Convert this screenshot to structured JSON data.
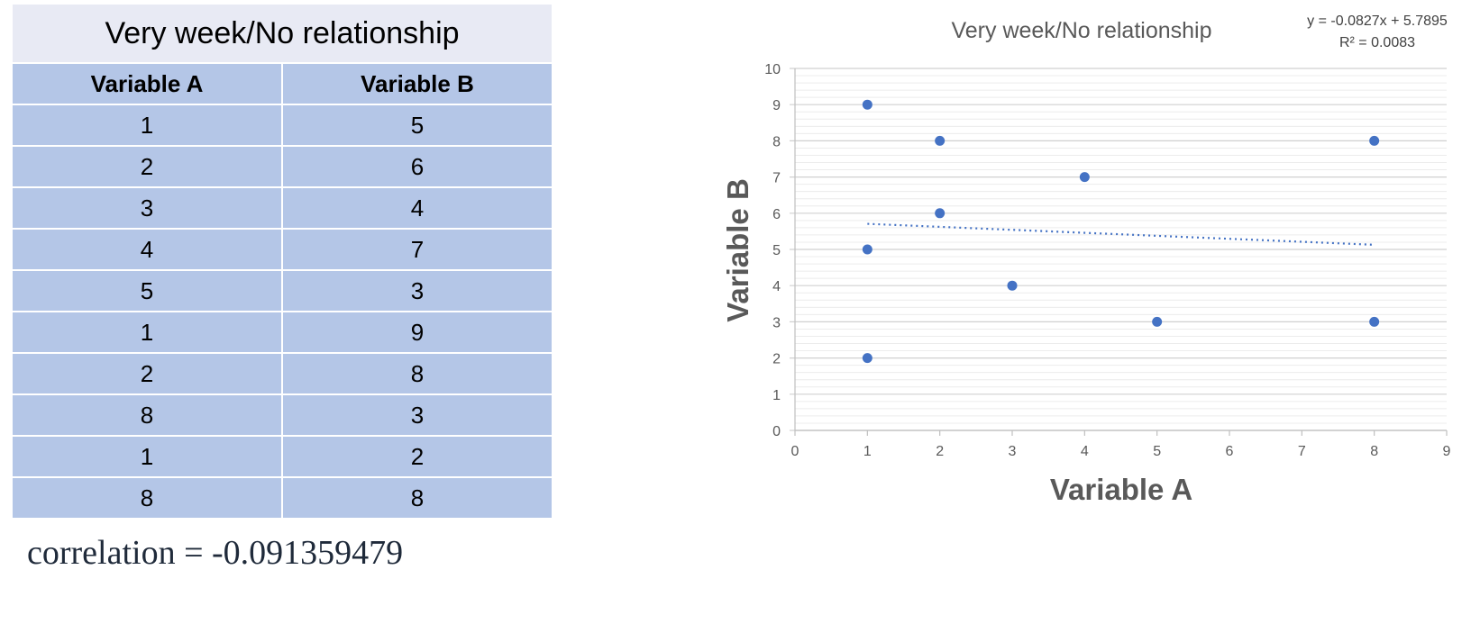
{
  "table": {
    "title": "Very week/No relationship",
    "headers": [
      "Variable A",
      "Variable B"
    ],
    "rows": [
      [
        "1",
        "5"
      ],
      [
        "2",
        "6"
      ],
      [
        "3",
        "4"
      ],
      [
        "4",
        "7"
      ],
      [
        "5",
        "3"
      ],
      [
        "1",
        "9"
      ],
      [
        "2",
        "8"
      ],
      [
        "8",
        "3"
      ],
      [
        "1",
        "2"
      ],
      [
        "8",
        "8"
      ]
    ]
  },
  "correlation_label": "correlation = -0.091359479",
  "chart_data": {
    "type": "scatter",
    "title": "Very week/No relationship",
    "xlabel": "Variable A",
    "ylabel": "Variable B",
    "xlim": [
      0,
      9
    ],
    "ylim": [
      0,
      10
    ],
    "xticks": [
      0,
      1,
      2,
      3,
      4,
      5,
      6,
      7,
      8,
      9
    ],
    "yticks": [
      0,
      1,
      2,
      3,
      4,
      5,
      6,
      7,
      8,
      9,
      10
    ],
    "points": [
      {
        "x": 1,
        "y": 5
      },
      {
        "x": 2,
        "y": 6
      },
      {
        "x": 3,
        "y": 4
      },
      {
        "x": 4,
        "y": 7
      },
      {
        "x": 5,
        "y": 3
      },
      {
        "x": 1,
        "y": 9
      },
      {
        "x": 2,
        "y": 8
      },
      {
        "x": 8,
        "y": 3
      },
      {
        "x": 1,
        "y": 2
      },
      {
        "x": 8,
        "y": 8
      }
    ],
    "trendline": {
      "type": "linear",
      "slope": -0.0827,
      "intercept": 5.7895,
      "x_range": [
        1,
        8
      ]
    },
    "equation_label": "y = -0.0827x + 5.7895",
    "r2_label": "R² = 0.0083",
    "grid": "major and minor horizontal",
    "legend": "none",
    "colors": {
      "point": "#4472c4",
      "trendline": "#4472c4",
      "axis_text": "#595959",
      "title_text": "#595959"
    }
  }
}
